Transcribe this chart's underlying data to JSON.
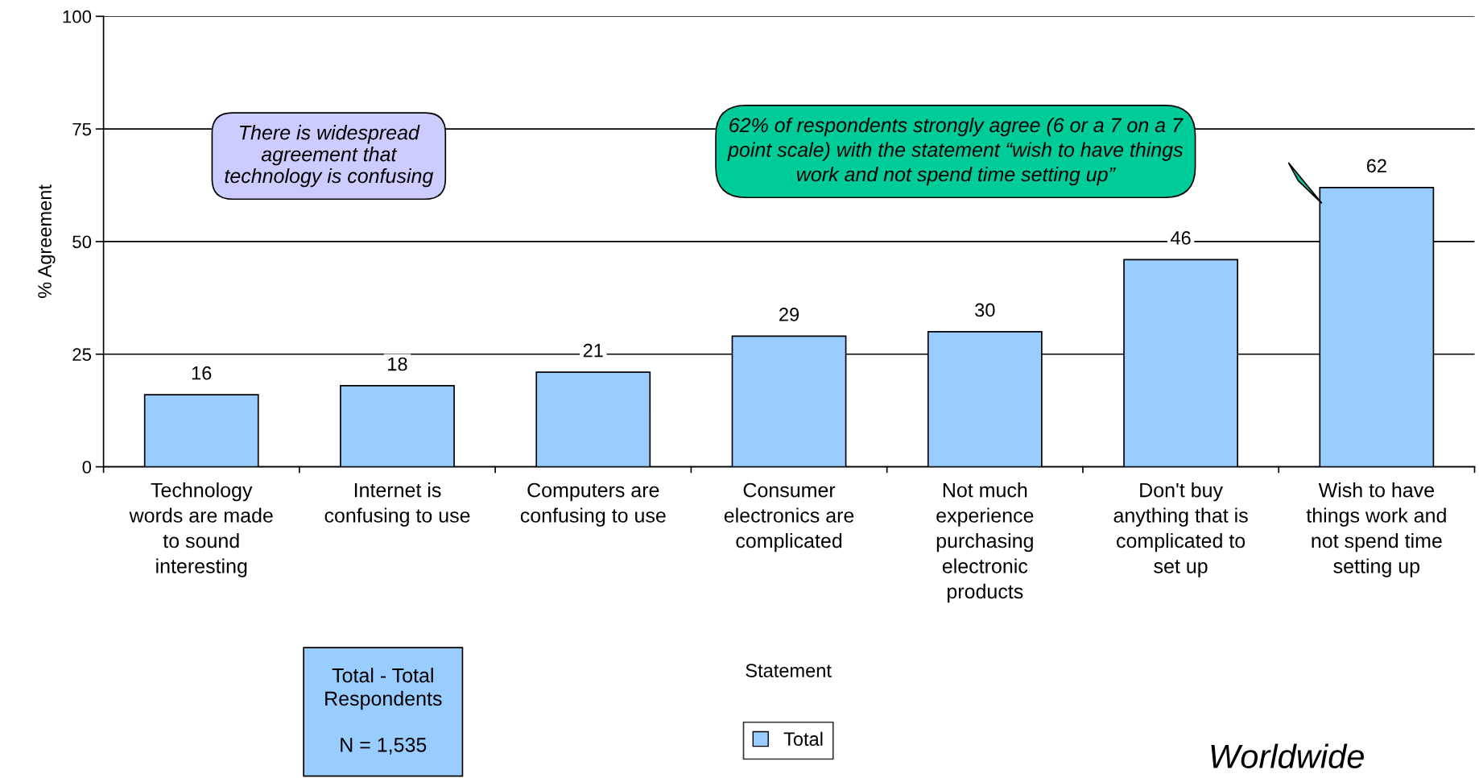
{
  "chart_data": {
    "type": "bar",
    "xlabel": "Statement",
    "ylabel": "% Agreement",
    "categories": [
      "Technology\nwords are made\nto sound\ninteresting",
      "Internet is\nconfusing to use",
      "Computers are\nconfusing to use",
      "Consumer\nelectronics are\ncomplicated",
      "Not much\nexperience\npurchasing\nelectronic\nproducts",
      "Don't buy\nanything that is\ncomplicated to\nset up",
      "Wish to have\nthings work and\nnot spend time\nsetting up"
    ],
    "series": [
      {
        "name": "Total",
        "color": "#99ccff",
        "values": [
          16,
          18,
          21,
          29,
          30,
          46,
          62
        ]
      }
    ],
    "ylim": [
      0,
      100
    ],
    "yticks": [
      0,
      25,
      50,
      75,
      100
    ],
    "grid": "y",
    "legend": "bottom",
    "data_labels": true,
    "annotations": [
      "There is widespread\nagreement that\ntechnology is confusing",
      "62% of respondents strongly agree (6 or a 7 on a 7\npoint scale) with the statement “wish to have things\nwork and not spend time setting up”",
      "Total - Total\nRespondents\n\nN = 1,535",
      "Worldwide"
    ]
  }
}
